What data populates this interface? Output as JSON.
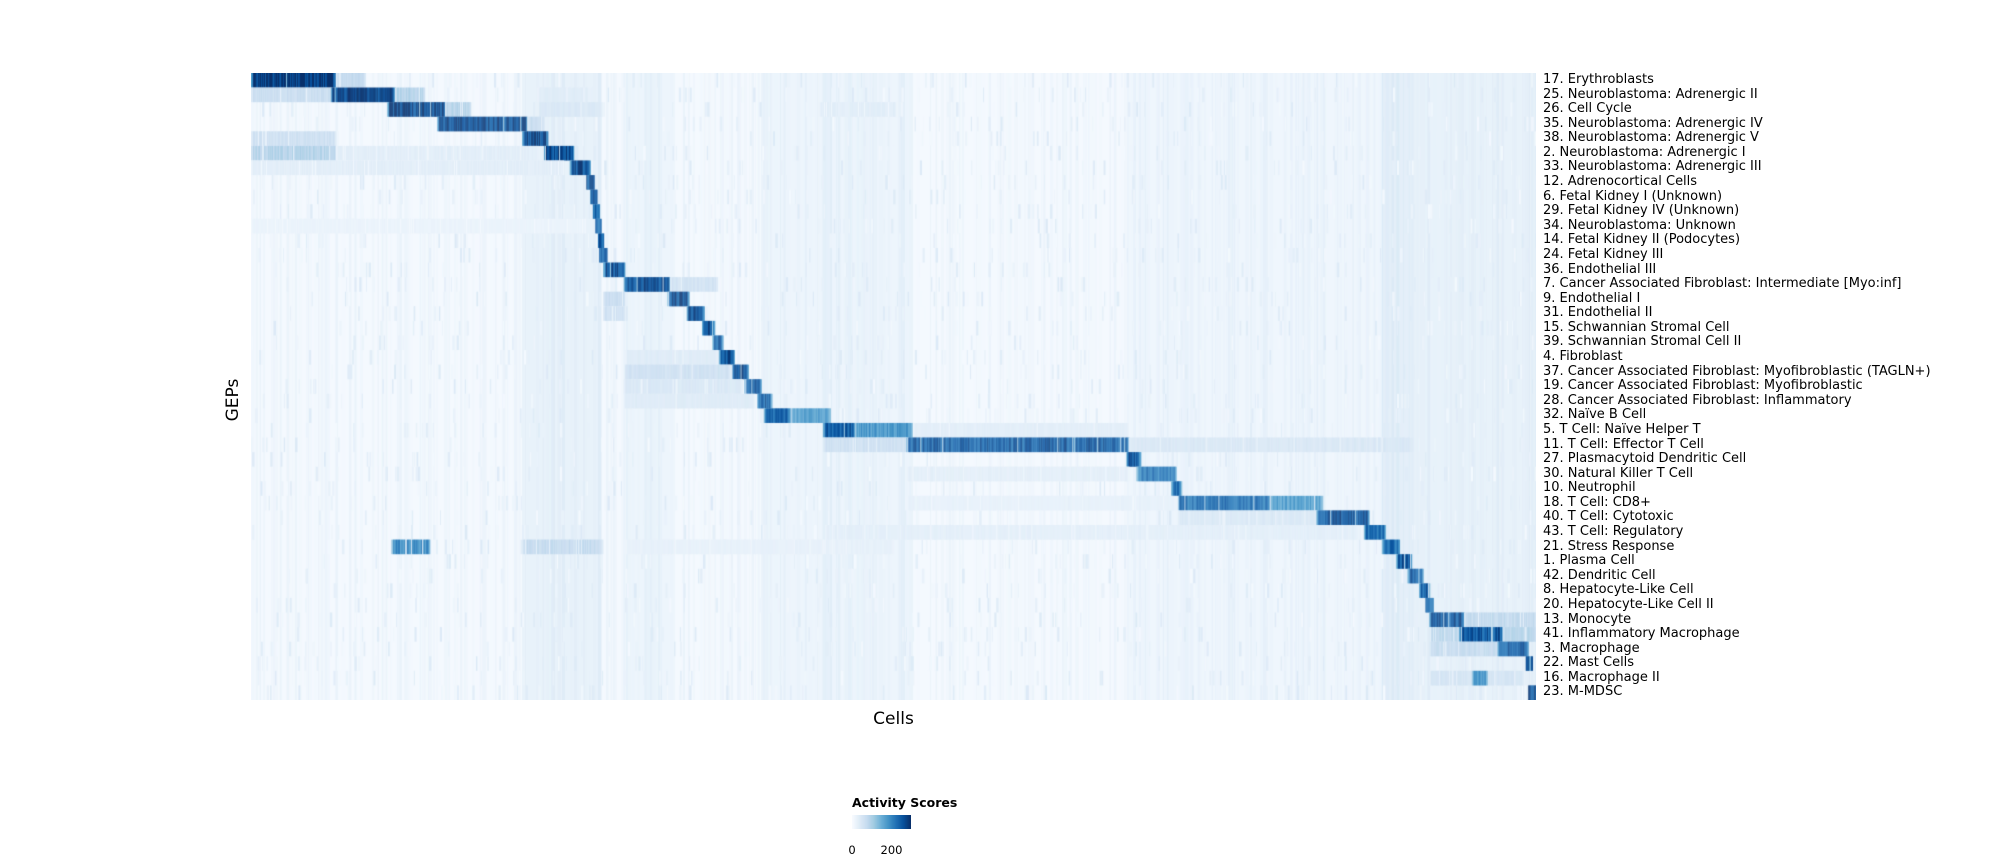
{
  "figure": {
    "background": "#ffffff"
  },
  "legend": {
    "title": "Activity Scores",
    "tick_min": "0",
    "tick_max": "200",
    "tick_max_frac": 0.67
  },
  "chart_data": {
    "type": "heatmap",
    "title": "",
    "xlabel": "Cells",
    "ylabel": "GEPs",
    "value_range": [
      0,
      200
    ],
    "legend_title": "Activity Scores",
    "colormap": {
      "name": "Blues",
      "stops": [
        [
          0,
          "#f7fbff"
        ],
        [
          0.125,
          "#deebf7"
        ],
        [
          0.25,
          "#c6dbef"
        ],
        [
          0.375,
          "#9ecae1"
        ],
        [
          0.5,
          "#6baed6"
        ],
        [
          0.625,
          "#4292c6"
        ],
        [
          0.75,
          "#2171b5"
        ],
        [
          0.875,
          "#08519c"
        ],
        [
          1,
          "#08306b"
        ]
      ]
    },
    "background_intensity": 0.015,
    "noise": {
      "seed": 7,
      "column_count": 500,
      "column_intensity": 0.05,
      "speckle_per_row": 70,
      "speckle_intensity": 0.12
    },
    "column_stripes": [
      [
        0.211,
        0.273,
        0.05
      ],
      [
        0.29,
        0.33,
        0.03
      ],
      [
        0.397,
        0.452,
        0.03
      ],
      [
        0.445,
        0.515,
        0.03
      ],
      [
        0.683,
        0.905,
        0.02
      ],
      [
        0.88,
        1.0,
        0.05
      ]
    ],
    "rows": [
      {
        "label": "17. Erythroblasts",
        "segments": [
          [
            0.0,
            0.066,
            1.0
          ],
          [
            0.066,
            0.089,
            0.25
          ]
        ]
      },
      {
        "label": "25. Neuroblastoma: Adrenergic II",
        "segments": [
          [
            0.0,
            0.062,
            0.22
          ],
          [
            0.062,
            0.112,
            0.95
          ],
          [
            0.112,
            0.135,
            0.3
          ],
          [
            0.223,
            0.263,
            0.12
          ]
        ]
      },
      {
        "label": "26. Cell Cycle",
        "segments": [
          [
            0.106,
            0.151,
            0.95
          ],
          [
            0.151,
            0.171,
            0.3
          ],
          [
            0.223,
            0.273,
            0.15
          ],
          [
            0.442,
            0.502,
            0.1
          ]
        ]
      },
      {
        "label": "35. Neuroblastoma: Adrenergic IV",
        "segments": [
          [
            0.145,
            0.215,
            0.95
          ],
          [
            0.215,
            0.228,
            0.25
          ]
        ]
      },
      {
        "label": "38. Neuroblastoma: Adrenergic V",
        "segments": [
          [
            0.0,
            0.066,
            0.2
          ],
          [
            0.211,
            0.231,
            0.92
          ]
        ]
      },
      {
        "label": "2. Neuroblastoma: Adrenergic I",
        "segments": [
          [
            0.0,
            0.066,
            0.3
          ],
          [
            0.066,
            0.223,
            0.1
          ],
          [
            0.228,
            0.251,
            0.93
          ]
        ]
      },
      {
        "label": "33. Neuroblastoma: Adrenergic III",
        "segments": [
          [
            0.0,
            0.243,
            0.1
          ],
          [
            0.248,
            0.264,
            0.9
          ]
        ]
      },
      {
        "label": "12. Adrenocortical Cells",
        "segments": [
          [
            0.261,
            0.267,
            0.85
          ]
        ]
      },
      {
        "label": "6. Fetal Kidney I (Unknown)",
        "segments": [
          [
            0.264,
            0.269,
            0.85
          ]
        ]
      },
      {
        "label": "29. Fetal Kidney IV (Unknown)",
        "segments": [
          [
            0.266,
            0.271,
            0.8
          ]
        ]
      },
      {
        "label": "34. Neuroblastoma: Unknown",
        "segments": [
          [
            0.0,
            0.26,
            0.06
          ],
          [
            0.268,
            0.272,
            0.8
          ]
        ]
      },
      {
        "label": "14. Fetal Kidney II (Podocytes)",
        "segments": [
          [
            0.27,
            0.274,
            0.85
          ]
        ]
      },
      {
        "label": "24. Fetal Kidney III",
        "segments": [
          [
            0.271,
            0.277,
            0.85
          ]
        ]
      },
      {
        "label": "36. Endothelial III",
        "segments": [
          [
            0.274,
            0.291,
            0.9
          ]
        ]
      },
      {
        "label": "7. Cancer Associated Fibroblast: Intermediate [Myo:inf]",
        "segments": [
          [
            0.29,
            0.326,
            0.9
          ],
          [
            0.326,
            0.363,
            0.18
          ]
        ]
      },
      {
        "label": "9. Endothelial I",
        "segments": [
          [
            0.274,
            0.291,
            0.25
          ],
          [
            0.324,
            0.341,
            0.9
          ]
        ]
      },
      {
        "label": "31. Endothelial II",
        "segments": [
          [
            0.274,
            0.291,
            0.2
          ],
          [
            0.339,
            0.353,
            0.88
          ]
        ]
      },
      {
        "label": "15. Schwannian Stromal Cell",
        "segments": [
          [
            0.351,
            0.361,
            0.88
          ]
        ]
      },
      {
        "label": "39. Schwannian Stromal Cell II",
        "segments": [
          [
            0.359,
            0.367,
            0.85
          ]
        ]
      },
      {
        "label": "4. Fibroblast",
        "segments": [
          [
            0.29,
            0.363,
            0.12
          ],
          [
            0.364,
            0.376,
            0.9
          ]
        ]
      },
      {
        "label": "37. Cancer Associated Fibroblast: Myofibroblastic (TAGLN+)",
        "segments": [
          [
            0.29,
            0.373,
            0.2
          ],
          [
            0.374,
            0.387,
            0.9
          ]
        ]
      },
      {
        "label": "19. Cancer Associated Fibroblast: Myofibroblastic",
        "segments": [
          [
            0.29,
            0.382,
            0.15
          ],
          [
            0.384,
            0.397,
            0.88
          ]
        ]
      },
      {
        "label": "28. Cancer Associated Fibroblast: Inflammatory",
        "segments": [
          [
            0.29,
            0.392,
            0.12
          ],
          [
            0.394,
            0.405,
            0.85
          ]
        ]
      },
      {
        "label": "32. Naïve B Cell",
        "segments": [
          [
            0.399,
            0.42,
            0.8
          ],
          [
            0.42,
            0.451,
            0.55
          ]
        ]
      },
      {
        "label": "5. T Cell: Naïve Helper T",
        "segments": [
          [
            0.445,
            0.47,
            0.85
          ],
          [
            0.47,
            0.515,
            0.6
          ],
          [
            0.515,
            0.683,
            0.1
          ]
        ]
      },
      {
        "label": "11. T Cell: Effector T Cell",
        "segments": [
          [
            0.445,
            0.51,
            0.2
          ],
          [
            0.51,
            0.683,
            0.85
          ],
          [
            0.683,
            0.905,
            0.15
          ]
        ]
      },
      {
        "label": "27. Plasmacytoid Dendritic Cell",
        "segments": [
          [
            0.681,
            0.692,
            0.88
          ]
        ]
      },
      {
        "label": "30. Natural Killer T Cell",
        "segments": [
          [
            0.51,
            0.683,
            0.1
          ],
          [
            0.689,
            0.72,
            0.72
          ]
        ]
      },
      {
        "label": "10. Neutrophil",
        "segments": [
          [
            0.716,
            0.724,
            0.8
          ]
        ]
      },
      {
        "label": "18. T Cell: CD8+",
        "segments": [
          [
            0.51,
            0.72,
            0.08
          ],
          [
            0.721,
            0.793,
            0.78
          ],
          [
            0.793,
            0.834,
            0.55
          ]
        ]
      },
      {
        "label": "40. T Cell: Cytotoxic",
        "segments": [
          [
            0.721,
            0.829,
            0.15
          ],
          [
            0.829,
            0.87,
            0.88
          ]
        ]
      },
      {
        "label": "43. T Cell: Regulatory",
        "segments": [
          [
            0.447,
            0.861,
            0.1
          ],
          [
            0.866,
            0.883,
            0.78
          ]
        ]
      },
      {
        "label": "21. Stress Response",
        "segments": [
          [
            0.109,
            0.139,
            0.65
          ],
          [
            0.211,
            0.273,
            0.25
          ],
          [
            0.29,
            0.5,
            0.08
          ],
          [
            0.88,
            0.894,
            0.78
          ]
        ]
      },
      {
        "label": "1. Plasma Cell",
        "segments": [
          [
            0.891,
            0.903,
            0.85
          ]
        ]
      },
      {
        "label": "42. Dendritic Cell",
        "segments": [
          [
            0.9,
            0.912,
            0.85
          ]
        ]
      },
      {
        "label": "8. Hepatocyte-Like Cell",
        "segments": [
          [
            0.909,
            0.917,
            0.85
          ]
        ]
      },
      {
        "label": "20. Hepatocyte-Like Cell II",
        "segments": [
          [
            0.914,
            0.92,
            0.8
          ]
        ]
      },
      {
        "label": "13. Monocyte",
        "segments": [
          [
            0.917,
            0.944,
            0.88
          ],
          [
            0.944,
            1.0,
            0.25
          ]
        ]
      },
      {
        "label": "41. Inflammatory Macrophage",
        "segments": [
          [
            0.917,
            0.94,
            0.3
          ],
          [
            0.94,
            0.974,
            0.85
          ],
          [
            0.974,
            1.0,
            0.3
          ]
        ]
      },
      {
        "label": "3. Macrophage",
        "segments": [
          [
            0.917,
            0.97,
            0.25
          ],
          [
            0.97,
            0.994,
            0.85
          ]
        ]
      },
      {
        "label": "22. Mast Cells",
        "segments": [
          [
            0.992,
            0.997,
            0.85
          ]
        ]
      },
      {
        "label": "16. Macrophage II",
        "segments": [
          [
            0.917,
            0.99,
            0.18
          ],
          [
            0.95,
            0.962,
            0.6
          ]
        ]
      },
      {
        "label": "23. M-MDSC",
        "segments": [
          [
            0.994,
            1.0,
            0.92
          ]
        ]
      }
    ]
  }
}
